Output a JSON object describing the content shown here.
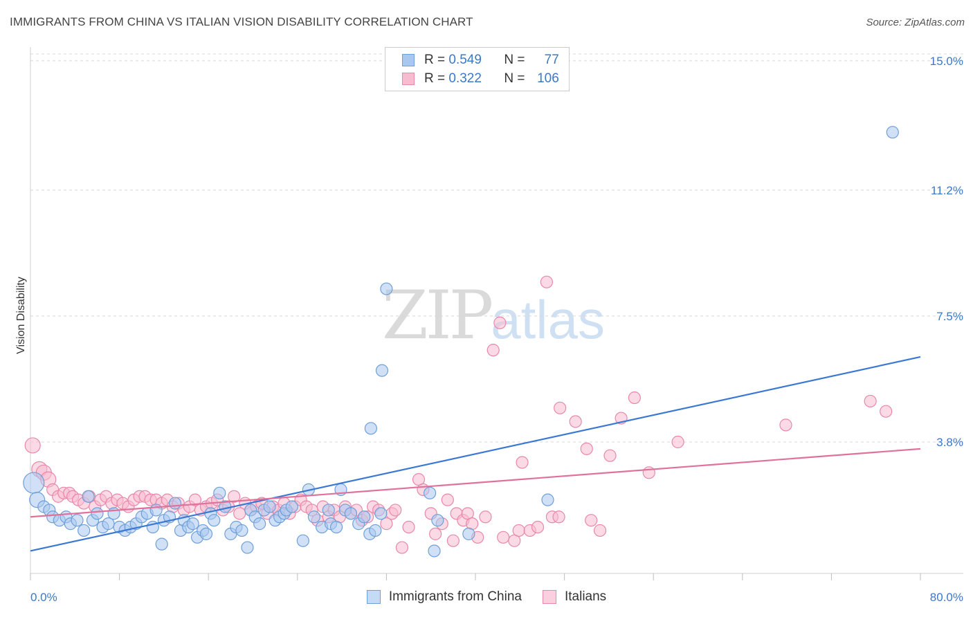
{
  "header": {
    "title": "IMMIGRANTS FROM CHINA VS ITALIAN VISION DISABILITY CORRELATION CHART",
    "source": "Source: ZipAtlas.com"
  },
  "watermark": {
    "zip": "ZIP",
    "atlas": "atlas"
  },
  "legend": {
    "rows": [
      {
        "r_label": "R =",
        "r_value": "0.549",
        "n_label": "N =",
        "n_value": "77",
        "color": "#a9c8f0",
        "border": "#6e9fd8"
      },
      {
        "r_label": "R =",
        "r_value": "0.322",
        "n_label": "N =",
        "n_value": "106",
        "color": "#f7bcd0",
        "border": "#e887a9"
      }
    ]
  },
  "bottom_legend": [
    {
      "label": "Immigrants from China",
      "color": "#c5dbf5",
      "border": "#6e9fd8"
    },
    {
      "label": "Italians",
      "color": "#fad0de",
      "border": "#e887a9"
    }
  ],
  "chart_data": {
    "type": "scatter",
    "title": "IMMIGRANTS FROM CHINA VS ITALIAN VISION DISABILITY CORRELATION CHART",
    "xlabel": "",
    "ylabel": "Vision Disability",
    "xlim": [
      0,
      80
    ],
    "ylim": [
      0,
      15.2
    ],
    "x_tick_labels": {
      "min": "0.0%",
      "max": "80.0%"
    },
    "y_ticks": [
      {
        "value": 3.8,
        "label": "3.8%"
      },
      {
        "value": 7.5,
        "label": "7.5%"
      },
      {
        "value": 11.2,
        "label": "11.2%"
      },
      {
        "value": 15.0,
        "label": "15.0%"
      }
    ],
    "grid": true,
    "legend_position": "top-center",
    "colors": {
      "china": "#3a78d4",
      "italians": "#e0719b",
      "tick_text": "#3b78c7"
    },
    "series": [
      {
        "name": "Immigrants from China",
        "trend": {
          "x": [
            0,
            80
          ],
          "y": [
            0.6,
            6.3
          ]
        },
        "points": [
          [
            0.3,
            2.6
          ],
          [
            0.6,
            2.1
          ],
          [
            1.2,
            1.9
          ],
          [
            1.7,
            1.8
          ],
          [
            2.0,
            1.6
          ],
          [
            2.6,
            1.5
          ],
          [
            3.2,
            1.6
          ],
          [
            3.6,
            1.4
          ],
          [
            4.2,
            1.5
          ],
          [
            4.8,
            1.2
          ],
          [
            5.2,
            2.2
          ],
          [
            5.6,
            1.5
          ],
          [
            6.0,
            1.7
          ],
          [
            6.5,
            1.3
          ],
          [
            7.0,
            1.4
          ],
          [
            7.5,
            1.7
          ],
          [
            8.0,
            1.3
          ],
          [
            8.5,
            1.2
          ],
          [
            9.0,
            1.3
          ],
          [
            9.5,
            1.4
          ],
          [
            10.0,
            1.6
          ],
          [
            10.5,
            1.7
          ],
          [
            11.0,
            1.3
          ],
          [
            11.3,
            1.8
          ],
          [
            11.8,
            0.8
          ],
          [
            12.0,
            1.5
          ],
          [
            12.5,
            1.6
          ],
          [
            13.0,
            2.0
          ],
          [
            13.5,
            1.2
          ],
          [
            13.8,
            1.5
          ],
          [
            14.2,
            1.3
          ],
          [
            14.6,
            1.4
          ],
          [
            15.0,
            1.0
          ],
          [
            15.5,
            1.2
          ],
          [
            15.8,
            1.1
          ],
          [
            16.2,
            1.7
          ],
          [
            16.5,
            1.5
          ],
          [
            17.0,
            2.3
          ],
          [
            17.5,
            1.9
          ],
          [
            18.0,
            1.1
          ],
          [
            18.5,
            1.3
          ],
          [
            19.0,
            1.2
          ],
          [
            19.5,
            0.7
          ],
          [
            19.8,
            1.8
          ],
          [
            20.2,
            1.6
          ],
          [
            20.6,
            1.4
          ],
          [
            21.0,
            1.8
          ],
          [
            21.5,
            1.9
          ],
          [
            22.0,
            1.5
          ],
          [
            22.4,
            1.6
          ],
          [
            22.8,
            1.7
          ],
          [
            23.0,
            1.8
          ],
          [
            23.5,
            1.9
          ],
          [
            24.5,
            0.9
          ],
          [
            25.0,
            2.4
          ],
          [
            25.5,
            1.6
          ],
          [
            26.2,
            1.3
          ],
          [
            26.8,
            1.8
          ],
          [
            27.0,
            1.4
          ],
          [
            27.5,
            1.3
          ],
          [
            27.9,
            2.4
          ],
          [
            28.3,
            1.8
          ],
          [
            28.8,
            1.7
          ],
          [
            29.5,
            1.4
          ],
          [
            30.0,
            1.6
          ],
          [
            30.5,
            1.1
          ],
          [
            31.0,
            1.2
          ],
          [
            30.6,
            4.2
          ],
          [
            31.5,
            1.7
          ],
          [
            31.6,
            5.9
          ],
          [
            32.0,
            8.3
          ],
          [
            35.9,
            2.3
          ],
          [
            36.3,
            0.6
          ],
          [
            36.6,
            1.5
          ],
          [
            39.4,
            1.1
          ],
          [
            46.5,
            2.1
          ],
          [
            77.5,
            12.9
          ]
        ]
      },
      {
        "name": "Italians",
        "trend": {
          "x": [
            0,
            80
          ],
          "y": [
            1.6,
            3.6
          ]
        },
        "points": [
          [
            0.2,
            3.7
          ],
          [
            0.8,
            3.0
          ],
          [
            1.2,
            2.9
          ],
          [
            1.6,
            2.7
          ],
          [
            2.0,
            2.4
          ],
          [
            2.5,
            2.2
          ],
          [
            3.0,
            2.3
          ],
          [
            3.5,
            2.3
          ],
          [
            3.8,
            2.2
          ],
          [
            4.3,
            2.1
          ],
          [
            4.8,
            2.0
          ],
          [
            5.3,
            2.2
          ],
          [
            5.8,
            1.9
          ],
          [
            6.3,
            2.1
          ],
          [
            6.8,
            2.2
          ],
          [
            7.3,
            2.0
          ],
          [
            7.8,
            2.1
          ],
          [
            8.3,
            2.0
          ],
          [
            8.8,
            1.9
          ],
          [
            9.3,
            2.1
          ],
          [
            9.8,
            2.2
          ],
          [
            10.3,
            2.2
          ],
          [
            10.8,
            2.1
          ],
          [
            11.3,
            2.1
          ],
          [
            11.8,
            2.0
          ],
          [
            12.3,
            2.1
          ],
          [
            12.8,
            1.9
          ],
          [
            13.3,
            2.0
          ],
          [
            13.8,
            1.8
          ],
          [
            14.3,
            1.9
          ],
          [
            14.8,
            2.1
          ],
          [
            15.3,
            1.8
          ],
          [
            15.8,
            1.9
          ],
          [
            16.3,
            2.0
          ],
          [
            16.8,
            2.1
          ],
          [
            17.3,
            1.8
          ],
          [
            17.8,
            1.9
          ],
          [
            18.3,
            2.2
          ],
          [
            18.8,
            1.7
          ],
          [
            19.3,
            2.0
          ],
          [
            19.8,
            1.8
          ],
          [
            20.3,
            1.9
          ],
          [
            20.8,
            2.0
          ],
          [
            21.3,
            1.7
          ],
          [
            21.8,
            1.9
          ],
          [
            22.3,
            1.8
          ],
          [
            22.8,
            2.0
          ],
          [
            23.3,
            1.7
          ],
          [
            23.8,
            1.9
          ],
          [
            24.3,
            2.1
          ],
          [
            24.8,
            1.9
          ],
          [
            25.3,
            1.8
          ],
          [
            25.8,
            1.5
          ],
          [
            26.3,
            1.9
          ],
          [
            26.8,
            1.6
          ],
          [
            27.3,
            1.8
          ],
          [
            27.8,
            1.6
          ],
          [
            28.3,
            1.9
          ],
          [
            28.8,
            1.7
          ],
          [
            29.3,
            1.8
          ],
          [
            29.8,
            1.5
          ],
          [
            30.3,
            1.6
          ],
          [
            30.8,
            1.9
          ],
          [
            31.3,
            1.8
          ],
          [
            32.0,
            1.4
          ],
          [
            32.5,
            1.7
          ],
          [
            32.8,
            1.8
          ],
          [
            33.4,
            0.7
          ],
          [
            34.0,
            1.3
          ],
          [
            34.9,
            2.7
          ],
          [
            35.3,
            2.4
          ],
          [
            36.0,
            1.7
          ],
          [
            36.4,
            1.1
          ],
          [
            37.0,
            1.4
          ],
          [
            37.5,
            2.1
          ],
          [
            38.0,
            0.9
          ],
          [
            38.3,
            1.7
          ],
          [
            38.9,
            1.5
          ],
          [
            39.3,
            1.7
          ],
          [
            39.7,
            1.4
          ],
          [
            40.2,
            1.0
          ],
          [
            40.9,
            1.6
          ],
          [
            41.6,
            6.5
          ],
          [
            42.2,
            7.3
          ],
          [
            42.5,
            1.0
          ],
          [
            43.5,
            0.9
          ],
          [
            43.9,
            1.2
          ],
          [
            44.2,
            3.2
          ],
          [
            44.9,
            1.2
          ],
          [
            45.6,
            1.3
          ],
          [
            46.4,
            8.5
          ],
          [
            46.9,
            1.6
          ],
          [
            47.5,
            1.6
          ],
          [
            47.6,
            4.8
          ],
          [
            49.0,
            4.4
          ],
          [
            50.0,
            3.6
          ],
          [
            50.4,
            1.5
          ],
          [
            51.2,
            1.2
          ],
          [
            52.1,
            3.4
          ],
          [
            53.1,
            4.5
          ],
          [
            54.3,
            5.1
          ],
          [
            55.6,
            2.9
          ],
          [
            58.2,
            3.8
          ],
          [
            67.9,
            4.3
          ],
          [
            75.5,
            5.0
          ],
          [
            76.9,
            4.7
          ]
        ]
      }
    ]
  }
}
